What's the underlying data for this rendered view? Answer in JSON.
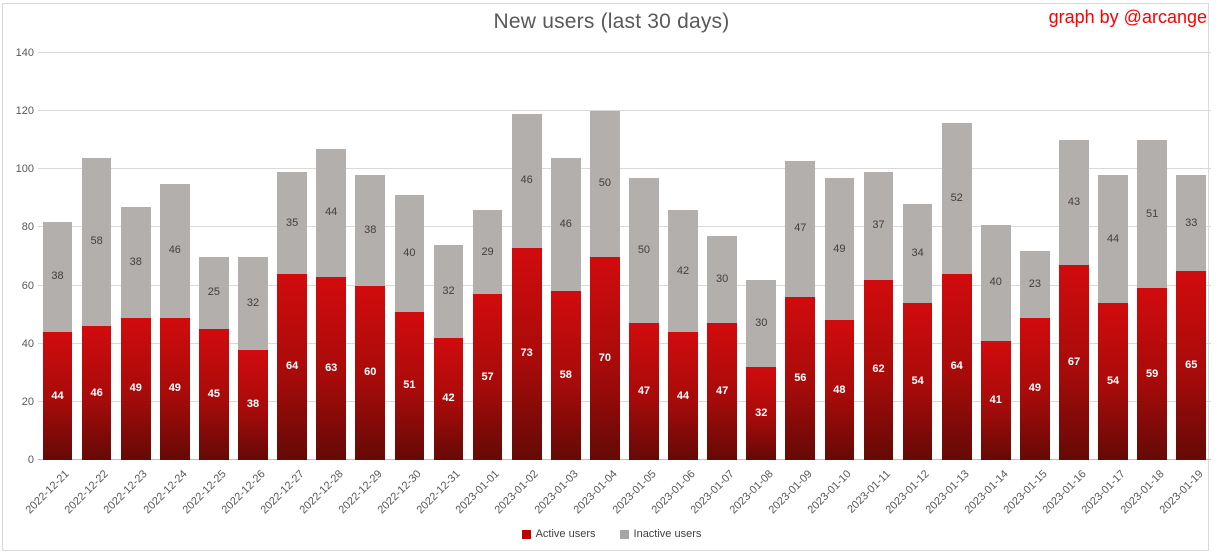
{
  "header": {
    "title": "New users (last 30 days)",
    "credit": "graph by @arcange"
  },
  "legend": {
    "items": [
      {
        "label": "Active users",
        "color": "#c00000"
      },
      {
        "label": "Inactive users",
        "color": "#a6a6a6"
      }
    ]
  },
  "colors": {
    "title_text": "#595959",
    "credit_text": "#ff0000",
    "axis_text": "#595959",
    "gridline": "#d9d9d9",
    "active_gradient_top": "#d20b0d",
    "active_gradient_bottom": "#650a06",
    "inactive_fill": "#b3afac",
    "active_value_label": "#ffffff",
    "inactive_value_label": "#404040"
  },
  "chart_data": {
    "type": "bar",
    "stacked": true,
    "title": "New users (last 30 days)",
    "xlabel": "",
    "ylabel": "",
    "ylim": [
      0,
      140
    ],
    "y_ticks": [
      0,
      20,
      40,
      60,
      80,
      100,
      120,
      140
    ],
    "grid": "horizontal",
    "legend_position": "bottom",
    "categories": [
      "2022-12-21",
      "2022-12-22",
      "2022-12-23",
      "2022-12-24",
      "2022-12-25",
      "2022-12-26",
      "2022-12-27",
      "2022-12-28",
      "2022-12-29",
      "2022-12-30",
      "2022-12-31",
      "2023-01-01",
      "2023-01-02",
      "2023-01-03",
      "2023-01-04",
      "2023-01-05",
      "2023-01-06",
      "2023-01-07",
      "2023-01-08",
      "2023-01-09",
      "2023-01-10",
      "2023-01-11",
      "2023-01-12",
      "2023-01-13",
      "2023-01-14",
      "2023-01-15",
      "2023-01-16",
      "2023-01-17",
      "2023-01-18",
      "2023-01-19"
    ],
    "series": [
      {
        "name": "Active users",
        "color": "#c00000",
        "values": [
          44,
          46,
          49,
          49,
          45,
          38,
          64,
          63,
          60,
          51,
          42,
          57,
          73,
          58,
          70,
          47,
          44,
          47,
          32,
          56,
          48,
          62,
          54,
          64,
          41,
          49,
          67,
          54,
          59,
          65
        ]
      },
      {
        "name": "Inactive users",
        "color": "#a6a6a6",
        "values": [
          38,
          58,
          38,
          46,
          25,
          32,
          35,
          44,
          38,
          40,
          32,
          29,
          46,
          46,
          50,
          50,
          42,
          30,
          30,
          47,
          49,
          37,
          34,
          52,
          40,
          23,
          43,
          44,
          51,
          33
        ]
      }
    ]
  }
}
